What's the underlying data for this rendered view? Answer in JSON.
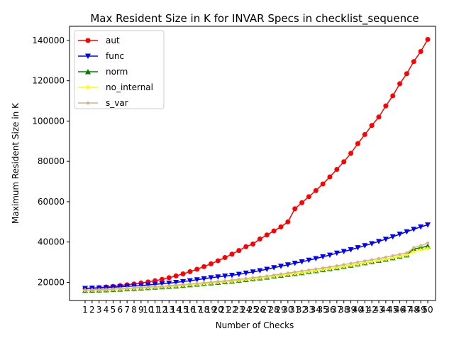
{
  "chart_data": {
    "type": "line",
    "title": "Max Resident Size in K for INVAR Specs in checklist_sequence",
    "xlabel": "Number of Checks",
    "ylabel": "Maximum Resident Size in K",
    "categories": [
      1,
      2,
      3,
      4,
      5,
      6,
      7,
      8,
      9,
      10,
      11,
      12,
      13,
      14,
      15,
      16,
      17,
      18,
      19,
      20,
      21,
      22,
      23,
      24,
      25,
      26,
      27,
      28,
      29,
      30,
      31,
      32,
      33,
      34,
      35,
      36,
      37,
      38,
      39,
      40,
      41,
      42,
      43,
      44,
      45,
      46,
      47,
      48,
      49,
      50
    ],
    "ylim": [
      11000,
      147000
    ],
    "yticks": [
      20000,
      40000,
      60000,
      80000,
      100000,
      120000,
      140000
    ],
    "grid": false,
    "legend_position": "top-left",
    "series": [
      {
        "name": "aut",
        "color": "#ff0000",
        "marker": "circle",
        "values": [
          17000,
          17200,
          17400,
          17700,
          18000,
          18400,
          18800,
          19200,
          19700,
          20200,
          20800,
          21500,
          22300,
          23200,
          24200,
          25300,
          26500,
          27800,
          29200,
          30700,
          32300,
          34000,
          35800,
          37700,
          39000,
          41500,
          43500,
          45500,
          47500,
          50000,
          56500,
          59500,
          62500,
          65500,
          68800,
          72300,
          76000,
          79800,
          84000,
          88800,
          93300,
          97800,
          102000,
          107500,
          112500,
          118500,
          123500,
          129500,
          134500,
          140500
        ]
      },
      {
        "name": "func",
        "color": "#0000ff",
        "marker": "triangle-down",
        "values": [
          17000,
          17100,
          17200,
          17400,
          17600,
          17800,
          18000,
          18200,
          18400,
          18700,
          19000,
          19300,
          19600,
          20000,
          20400,
          20800,
          21300,
          21800,
          22300,
          22700,
          23100,
          23500,
          24000,
          24600,
          25200,
          25800,
          26500,
          27300,
          28000,
          28700,
          29500,
          30200,
          31000,
          31800,
          32700,
          33500,
          34500,
          35300,
          36200,
          37200,
          38200,
          39200,
          40300,
          41400,
          42600,
          43900,
          45100,
          46300,
          47500,
          48500
        ]
      },
      {
        "name": "norm",
        "color": "#008000",
        "marker": "triangle-up",
        "values": [
          16000,
          16100,
          16200,
          16300,
          16400,
          16600,
          16800,
          17000,
          17200,
          17400,
          17600,
          17800,
          18000,
          18200,
          18500,
          18800,
          19100,
          19400,
          19700,
          20000,
          20300,
          20600,
          21000,
          21400,
          21800,
          22200,
          22600,
          23100,
          23500,
          24000,
          24400,
          24800,
          25300,
          25800,
          26300,
          26800,
          27300,
          27900,
          28500,
          29100,
          29700,
          30300,
          30900,
          31500,
          32200,
          32900,
          33600,
          36500,
          37200,
          38000
        ]
      },
      {
        "name": "no_internal",
        "color": "#ffff00",
        "marker": "star",
        "values": [
          16000,
          16100,
          16200,
          16300,
          16400,
          16600,
          16800,
          17000,
          17200,
          17400,
          17600,
          17800,
          18000,
          18200,
          18500,
          18800,
          19100,
          19400,
          19700,
          20000,
          20300,
          20600,
          21000,
          21400,
          21800,
          22200,
          22600,
          23100,
          23500,
          24000,
          24400,
          24800,
          25300,
          25800,
          26300,
          26800,
          27300,
          27900,
          28500,
          29100,
          29700,
          30300,
          30900,
          31500,
          32200,
          32900,
          33600,
          35200,
          36200,
          36800
        ]
      },
      {
        "name": "s_var",
        "color": "#d2b48c",
        "marker": "pentagon",
        "values": [
          16200,
          16300,
          16400,
          16500,
          16700,
          16900,
          17100,
          17300,
          17500,
          17700,
          17900,
          18100,
          18300,
          18600,
          18900,
          19200,
          19500,
          19800,
          20100,
          20400,
          20700,
          21100,
          21500,
          21900,
          22300,
          22700,
          23100,
          23600,
          24100,
          24600,
          25100,
          25600,
          26100,
          26600,
          27100,
          27600,
          28200,
          28800,
          29400,
          30000,
          30600,
          31200,
          31800,
          32500,
          33200,
          33900,
          34600,
          37200,
          38200,
          39500
        ]
      }
    ]
  }
}
